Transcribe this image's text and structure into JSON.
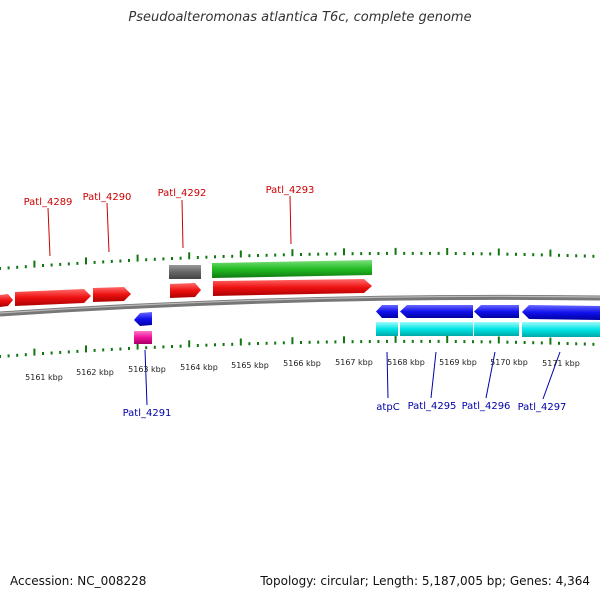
{
  "title": "Pseudoalteromonas atlantica T6c, complete genome",
  "footer": {
    "accession": "Accession: NC_008228",
    "info": "Topology: circular; Length: 5,187,005 bp; Genes: 4,364"
  },
  "colors": {
    "forward_cds": "#ee1111",
    "forward_gene": "#22bb22",
    "reverse_cds": "#1111ee",
    "reverse_gene": "#00e5e5",
    "pseudo_gene": "#666666",
    "rna": "#ee1199",
    "tick": "#117711",
    "backbone": "#888888",
    "label_top": "#cc0000",
    "label_bottom": "#0000aa"
  },
  "axis_labels": [
    "5161 kbp",
    "5162 kbp",
    "5163 kbp",
    "5164 kbp",
    "5165 kbp",
    "5166 kbp",
    "5167 kbp",
    "5168 kbp",
    "5169 kbp",
    "5170 kbp",
    "5171 kbp"
  ],
  "gene_labels_top": [
    "Patl_4289",
    "Patl_4290",
    "Patl_4292",
    "Patl_4293"
  ],
  "gene_labels_bottom": [
    "Patl_4291",
    "atpC",
    "Patl_4295",
    "Patl_4296",
    "Patl_4297"
  ]
}
